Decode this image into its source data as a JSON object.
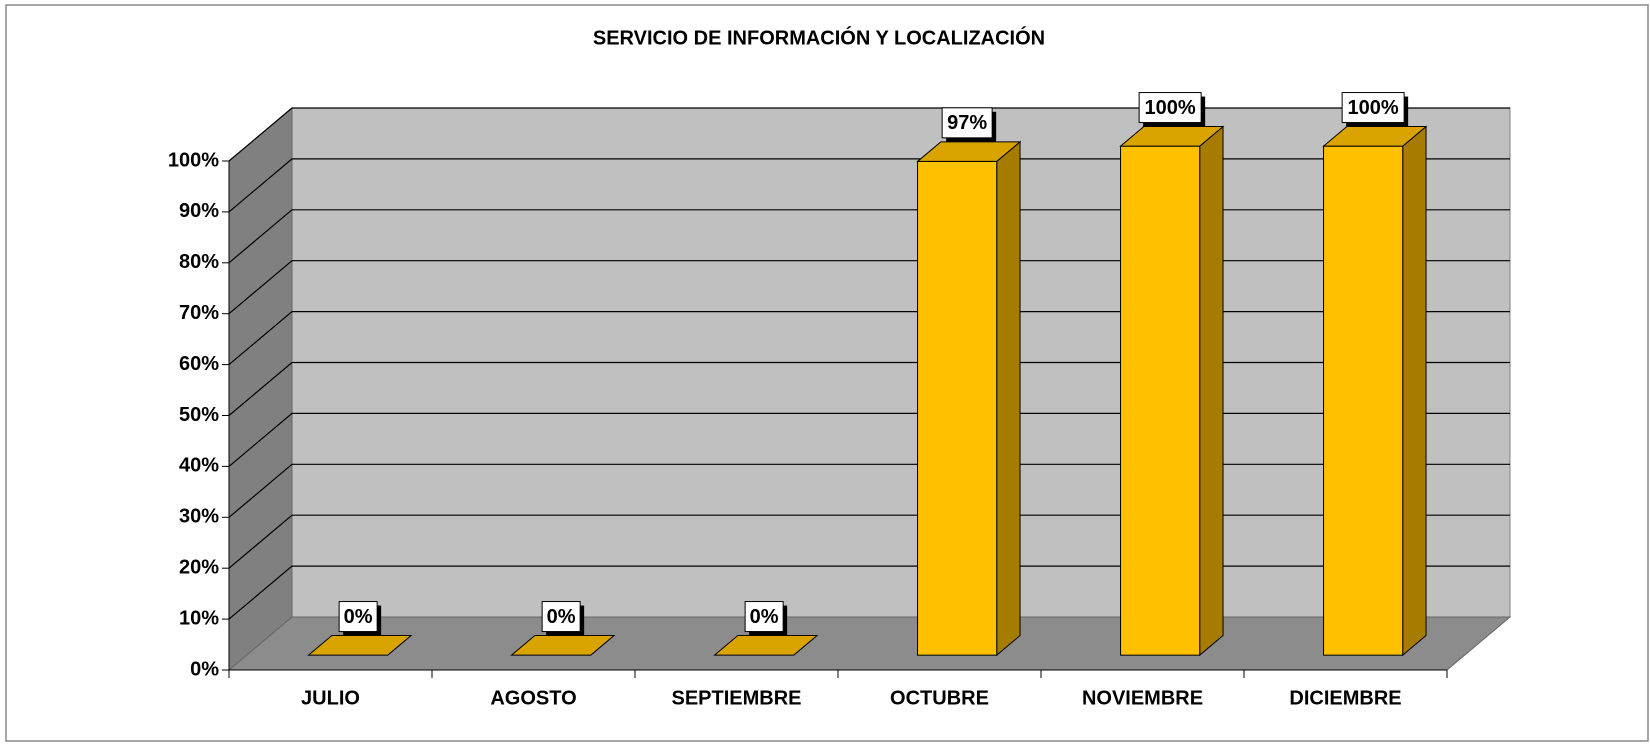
{
  "chart_data": {
    "type": "bar3d",
    "title": "SERVICIO DE INFORMACIÓN Y LOCALIZACIÓN",
    "categories": [
      "JULIO",
      "AGOSTO",
      "SEPTIEMBRE",
      "OCTUBRE",
      "NOVIEMBRE",
      "DICIEMBRE"
    ],
    "values": [
      0,
      0,
      0,
      97,
      100,
      100
    ],
    "value_labels": [
      "0%",
      "0%",
      "0%",
      "97%",
      "100%",
      "100%"
    ],
    "color": "#ffc000",
    "ylim": [
      0,
      100
    ],
    "yticks": [
      {
        "value": 0,
        "label": "0%"
      },
      {
        "value": 10,
        "label": "10%"
      },
      {
        "value": 20,
        "label": "20%"
      },
      {
        "value": 30,
        "label": "30%"
      },
      {
        "value": 40,
        "label": "40%"
      },
      {
        "value": 50,
        "label": "50%"
      },
      {
        "value": 60,
        "label": "60%"
      },
      {
        "value": 70,
        "label": "70%"
      },
      {
        "value": 80,
        "label": "80%"
      },
      {
        "value": 90,
        "label": "90%"
      },
      {
        "value": 100,
        "label": "100%"
      }
    ],
    "grid": true
  }
}
